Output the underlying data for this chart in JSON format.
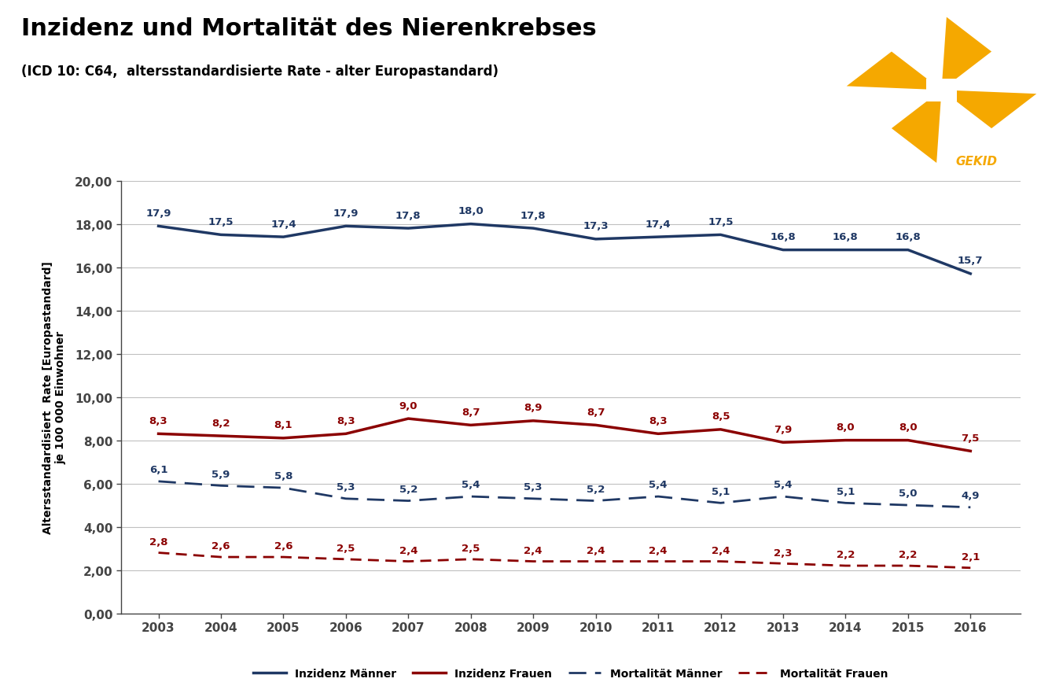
{
  "title": "Inzidenz und Mortalität des Nierenkrebses",
  "subtitle": "(ICD 10: C64,  altersstandardisierte Rate - alter Europastandard)",
  "ylabel_top": "Altersstandardisiert  Rate [Europastandard]",
  "ylabel_bottom": "je 100 000 Einwohner",
  "years": [
    2003,
    2004,
    2005,
    2006,
    2007,
    2008,
    2009,
    2010,
    2011,
    2012,
    2013,
    2014,
    2015,
    2016
  ],
  "inzidenz_maenner": [
    17.9,
    17.5,
    17.4,
    17.9,
    17.8,
    18.0,
    17.8,
    17.3,
    17.4,
    17.5,
    16.8,
    16.8,
    16.8,
    15.7
  ],
  "inzidenz_frauen": [
    8.3,
    8.2,
    8.1,
    8.3,
    9.0,
    8.7,
    8.9,
    8.7,
    8.3,
    8.5,
    7.9,
    8.0,
    8.0,
    7.5
  ],
  "mortalitaet_maenner": [
    6.1,
    5.9,
    5.8,
    5.3,
    5.2,
    5.4,
    5.3,
    5.2,
    5.4,
    5.1,
    5.4,
    5.1,
    5.0,
    4.9
  ],
  "mortalitaet_frauen": [
    2.8,
    2.6,
    2.6,
    2.5,
    2.4,
    2.5,
    2.4,
    2.4,
    2.4,
    2.4,
    2.3,
    2.2,
    2.2,
    2.1
  ],
  "color_maenner": "#1F3864",
  "color_frauen": "#8B0000",
  "ylim": [
    0,
    20
  ],
  "ytick_vals": [
    0.0,
    2.0,
    4.0,
    6.0,
    8.0,
    10.0,
    12.0,
    14.0,
    16.0,
    18.0,
    20.0
  ],
  "ytick_labels": [
    "0,00",
    "2,00",
    "4,00",
    "6,00",
    "8,00",
    "10,00",
    "12,00",
    "14,00",
    "16,00",
    "18,00",
    "20,00"
  ],
  "legend_labels": [
    "Inzidenz Männer",
    "Inzidenz Frauen",
    "Mortalität Männer",
    "Mortalität Frauen"
  ],
  "background_color": "#FFFFFF",
  "grid_color": "#C0C0C0",
  "label_fontsize": 9.5,
  "axis_fontsize": 11,
  "title_fontsize": 22,
  "subtitle_fontsize": 12,
  "lw_solid": 2.5,
  "lw_dash": 2.0,
  "gekid_color": "#F5A800"
}
